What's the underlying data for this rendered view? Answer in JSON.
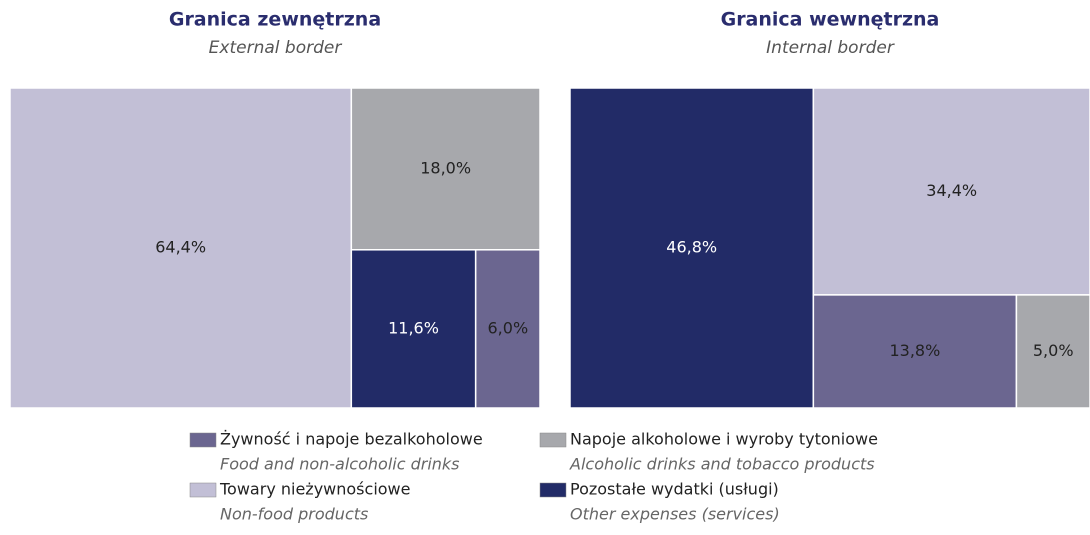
{
  "legend": [
    {
      "name": "Żywność i napoje bezalkoholowe",
      "subtitle": "Food and non-alcoholic drinks",
      "color": "#6b6690"
    },
    {
      "name": "Napoje alkoholowe i wyroby tytoniowe",
      "subtitle": "Alcoholic drinks and tobacco products",
      "color": "#a7a8ac"
    },
    {
      "name": "Towary nieżywnościowe",
      "subtitle": "Non-food products",
      "color": "#c2bfd6"
    },
    {
      "name": "Pozostałe wydatki (usługi)",
      "subtitle": "Other expenses (services)",
      "color": "#222b67"
    }
  ],
  "chart_data": [
    {
      "type": "treemap",
      "title": "Granica zewnętrzna",
      "subtitle": "External border",
      "values": [
        6.0,
        18.0,
        64.4,
        11.6
      ],
      "value_labels": [
        "6,0%",
        "18,0%",
        "64,4%",
        "11,6%"
      ]
    },
    {
      "type": "treemap",
      "title": "Granica wewnętrzna",
      "subtitle": "Internal border",
      "values": [
        13.8,
        5.0,
        34.4,
        46.8
      ],
      "value_labels": [
        "13,8%",
        "5,0%",
        "34,4%",
        "46,8%"
      ]
    }
  ]
}
